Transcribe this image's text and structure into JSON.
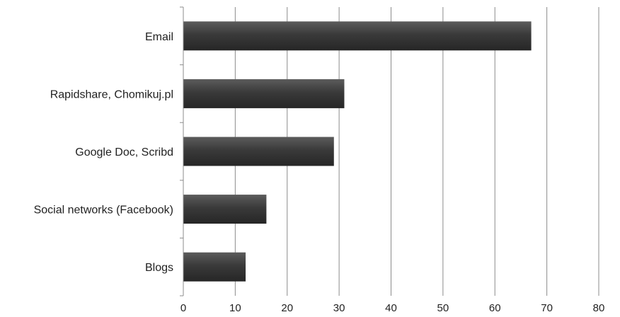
{
  "chart_data": {
    "type": "bar",
    "orientation": "horizontal",
    "title": "",
    "xlabel": "",
    "ylabel": "",
    "categories": [
      "Email",
      "Rapidshare, Chomikuj.pl",
      "Google Doc, Scribd",
      "Social networks (Facebook)",
      "Blogs"
    ],
    "values": [
      67,
      31,
      29,
      16,
      12
    ],
    "xlim": [
      0,
      80
    ],
    "xticks": [
      0,
      10,
      20,
      30,
      40,
      50,
      60,
      70,
      80
    ],
    "grid": "vertical",
    "legend": "none",
    "colors": {
      "bar": "#3a3a3a",
      "bar_highlight": "#5c5c5c",
      "grid": "#8c8c8c",
      "axis": "#8c8c8c"
    }
  }
}
